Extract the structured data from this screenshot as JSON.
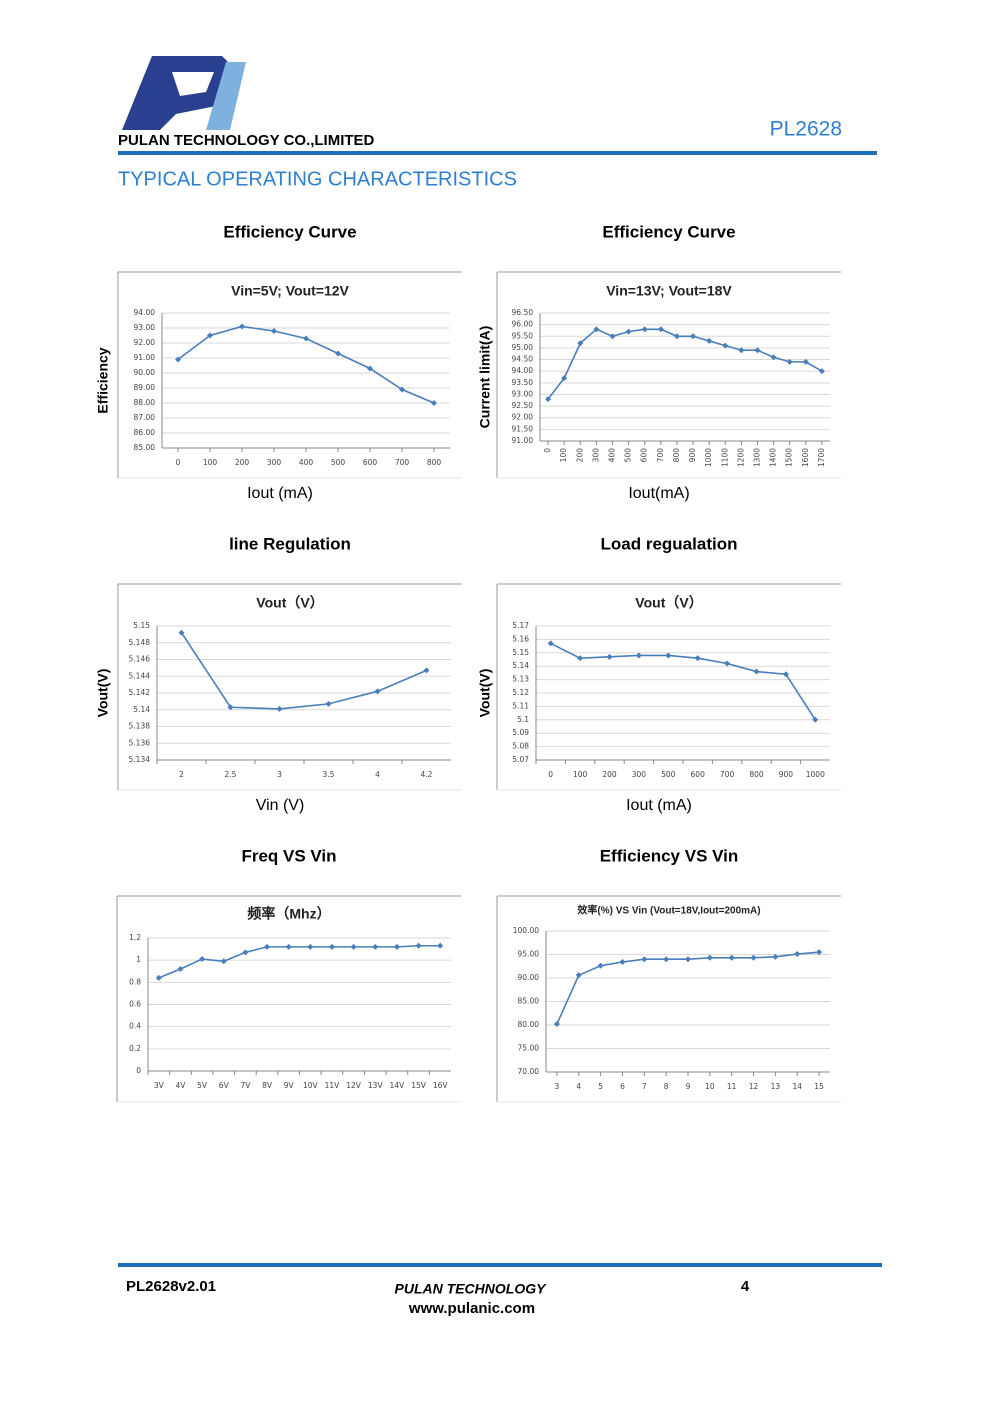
{
  "header": {
    "company": "PULAN TECHNOLOGY CO.,LIMITED",
    "part": "PL2628",
    "section_title": "TYPICAL OPERATING CHARACTERISTICS"
  },
  "chart_data": [
    {
      "type": "line",
      "heading": "Efficiency Curve",
      "title": "Vin=5V; Vout=12V",
      "xlabel": "Iout (mA)",
      "ylabel": "Efficiency",
      "color": "#4a7ebb",
      "x": [
        0,
        100,
        200,
        300,
        400,
        500,
        600,
        700,
        800
      ],
      "values": [
        90.9,
        92.5,
        93.1,
        92.8,
        92.3,
        91.3,
        90.3,
        88.9,
        88.0
      ],
      "xlim": [
        -50,
        850
      ],
      "xticks": [
        0,
        100,
        200,
        300,
        400,
        500,
        600,
        700,
        800
      ],
      "ylim": [
        85,
        94
      ],
      "yticks": [
        {
          "value": 85,
          "label": "85.00"
        },
        {
          "value": 86,
          "label": "86.00"
        },
        {
          "value": 87,
          "label": "87.00"
        },
        {
          "value": 88,
          "label": "88.00"
        },
        {
          "value": 89,
          "label": "89.00"
        },
        {
          "value": 90,
          "label": "90.00"
        },
        {
          "value": 91,
          "label": "91.00"
        },
        {
          "value": 92,
          "label": "92.00"
        },
        {
          "value": 93,
          "label": "93.00"
        },
        {
          "value": 94,
          "label": "94.00"
        }
      ],
      "grid": true
    },
    {
      "type": "line",
      "heading": "Efficiency Curve",
      "title": "Vin=13V; Vout=18V",
      "xlabel": "Iout(mA)",
      "ylabel": "Current limit(A)",
      "color": "#4a7ebb",
      "x": [
        0,
        100,
        200,
        300,
        400,
        500,
        600,
        700,
        800,
        900,
        1000,
        1100,
        1200,
        1300,
        1400,
        1500,
        1600,
        1700
      ],
      "values": [
        92.8,
        93.7,
        95.2,
        95.8,
        95.5,
        95.7,
        95.8,
        95.8,
        95.5,
        95.5,
        95.3,
        95.1,
        94.9,
        94.9,
        94.6,
        94.4,
        94.4,
        94.0
      ],
      "xlim": [
        -50,
        1750
      ],
      "xticks": [
        0,
        100,
        200,
        300,
        400,
        500,
        600,
        700,
        800,
        900,
        1000,
        1100,
        1200,
        1300,
        1400,
        1500,
        1600,
        1700
      ],
      "ylim": [
        91,
        96.5
      ],
      "yticks": [
        {
          "value": 91,
          "label": "91.00"
        },
        {
          "value": 91.5,
          "label": "91.50"
        },
        {
          "value": 92,
          "label": "92.00"
        },
        {
          "value": 92.5,
          "label": "92.50"
        },
        {
          "value": 93,
          "label": "93.00"
        },
        {
          "value": 93.5,
          "label": "93.50"
        },
        {
          "value": 94,
          "label": "94.00"
        },
        {
          "value": 94.5,
          "label": "94.50"
        },
        {
          "value": 95,
          "label": "95.00"
        },
        {
          "value": 95.5,
          "label": "95.50"
        },
        {
          "value": 96,
          "label": "96.00"
        },
        {
          "value": 96.5,
          "label": "96.50"
        }
      ],
      "grid": true
    },
    {
      "type": "line",
      "heading": "line Regulation",
      "title": "Vout（V）",
      "xlabel": "Vin (V)",
      "ylabel": "Vout(V)",
      "color": "#4a7ebb",
      "categories": [
        "2",
        "2.5",
        "3",
        "3.5",
        "4",
        "4.2"
      ],
      "values": [
        5.1492,
        5.1403,
        5.1401,
        5.1407,
        5.1422,
        5.1447
      ],
      "ylim": [
        5.134,
        5.15
      ],
      "yticks": [
        5.134,
        5.136,
        5.138,
        5.14,
        5.142,
        5.144,
        5.146,
        5.148,
        5.15
      ],
      "grid": true
    },
    {
      "type": "line",
      "heading": "Load regualation",
      "title": "Vout（V）",
      "xlabel": "Iout (mA)",
      "ylabel": "Vout(V)",
      "color": "#4a7ebb",
      "categories": [
        "0",
        "100",
        "200",
        "300",
        "500",
        "600",
        "700",
        "800",
        "900",
        "1000"
      ],
      "values": [
        5.157,
        5.146,
        5.147,
        5.148,
        5.148,
        5.146,
        5.142,
        5.136,
        5.134,
        5.1
      ],
      "ylim": [
        5.07,
        5.17
      ],
      "yticks": [
        5.07,
        5.08,
        5.09,
        5.1,
        5.11,
        5.12,
        5.13,
        5.14,
        5.15,
        5.16,
        5.17
      ],
      "grid": true
    },
    {
      "type": "line",
      "heading": "Freq VS Vin",
      "title": "频率（Mhz）",
      "color": "#4a7ebb",
      "categories": [
        "3V",
        "4V",
        "5V",
        "6V",
        "7V",
        "8V",
        "9V",
        "10V",
        "11V",
        "12V",
        "13V",
        "14V",
        "15V",
        "16V"
      ],
      "values": [
        0.84,
        0.92,
        1.01,
        0.99,
        1.07,
        1.12,
        1.12,
        1.12,
        1.12,
        1.12,
        1.12,
        1.12,
        1.13,
        1.13
      ],
      "ylim": [
        0,
        1.2
      ],
      "yticks": [
        0,
        0.2,
        0.4,
        0.6,
        0.8,
        1,
        1.2
      ],
      "grid": true
    },
    {
      "type": "line",
      "heading": "Efficiency VS Vin",
      "title": "效率(%) VS  Vin (Vout=18V,Iout=200mA)",
      "color": "#4a7ebb",
      "x": [
        3,
        4,
        5,
        6,
        7,
        8,
        9,
        10,
        11,
        12,
        13,
        14,
        15
      ],
      "values": [
        80.2,
        90.6,
        92.6,
        93.4,
        94.0,
        94.0,
        94.0,
        94.3,
        94.3,
        94.3,
        94.5,
        95.1,
        95.5
      ],
      "xlim": [
        2.5,
        15.5
      ],
      "xticks": [
        3,
        4,
        5,
        6,
        7,
        8,
        9,
        10,
        11,
        12,
        13,
        14,
        15
      ],
      "ylim": [
        70,
        100
      ],
      "yticks": [
        {
          "value": 70,
          "label": "70.00"
        },
        {
          "value": 75,
          "label": "75.00"
        },
        {
          "value": 80,
          "label": "80.00"
        },
        {
          "value": 85,
          "label": "85.00"
        },
        {
          "value": 90,
          "label": "90.00"
        },
        {
          "value": 95,
          "label": "95.00"
        },
        {
          "value": 100,
          "label": "100.00"
        }
      ],
      "grid": true
    }
  ],
  "footer": {
    "doc": "PL2628v2.01",
    "company": "PULAN TECHNOLOGY",
    "website": "www.pulanic.com",
    "page": "4"
  }
}
